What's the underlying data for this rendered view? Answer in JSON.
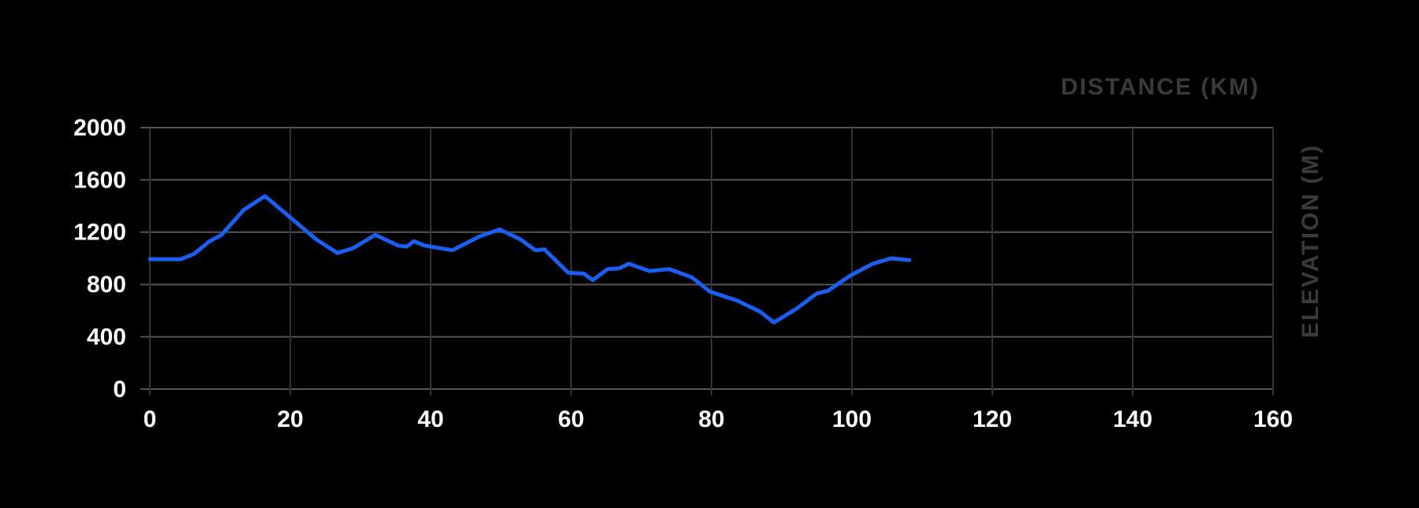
{
  "chart_data": {
    "type": "line",
    "x_label": "DISTANCE (KM)",
    "y_label": "ELEVATION (M)",
    "x": [
      0,
      4.4,
      6.3,
      8.5,
      10.2,
      13.4,
      16.4,
      19.9,
      23.7,
      26.7,
      28.9,
      32.1,
      35.4,
      36.6,
      37.6,
      39.2,
      43.1,
      46.9,
      49.8,
      52.8,
      54.9,
      56.2,
      59.6,
      61.8,
      63.1,
      65.2,
      66.9,
      68.2,
      71.2,
      74.0,
      77.2,
      79.8,
      83.7,
      86.9,
      88.9,
      92.1,
      95.0,
      96.6,
      99.8,
      103.0,
      105.6,
      108.2
    ],
    "series": [
      {
        "name": "Elevation",
        "color": "#1a5ff0",
        "values": [
          993,
          993,
          1034,
          1131,
          1179,
          1372,
          1476,
          1317,
          1145,
          1041,
          1076,
          1179,
          1097,
          1090,
          1131,
          1097,
          1062,
          1166,
          1221,
          1145,
          1062,
          1069,
          890,
          883,
          834,
          917,
          924,
          959,
          903,
          917,
          855,
          745,
          676,
          593,
          510,
          614,
          731,
          752,
          869,
          959,
          1000,
          986
        ]
      }
    ],
    "xlim": [
      0,
      160
    ],
    "xticks": [
      0,
      20,
      40,
      60,
      80,
      100,
      120,
      140,
      160
    ],
    "ylim": [
      0,
      2000
    ],
    "yticks": [
      0,
      400,
      800,
      1200,
      1600,
      2000
    ],
    "grid": true
  }
}
